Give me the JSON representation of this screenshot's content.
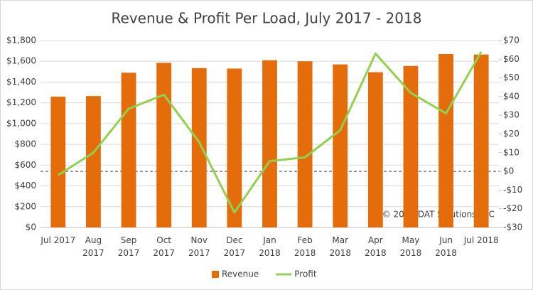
{
  "chart_data": {
    "type": "bar-line",
    "title": "Revenue & Profit Per Load, July 2017 - 2018",
    "annotation": "© 2018 DAT Solutions LLC",
    "categories": [
      [
        "Jul 2017"
      ],
      [
        "Aug",
        "2017"
      ],
      [
        "Sep",
        "2017"
      ],
      [
        "Oct",
        "2017"
      ],
      [
        "Nov",
        "2017"
      ],
      [
        "Dec",
        "2017"
      ],
      [
        "Jan",
        "2018"
      ],
      [
        "Feb",
        "2018"
      ],
      [
        "Mar",
        "2018"
      ],
      [
        "Apr",
        "2018"
      ],
      [
        "May",
        "2018"
      ],
      [
        "Jun",
        "2018"
      ],
      [
        "Jul 2018"
      ]
    ],
    "series": [
      {
        "name": "Revenue",
        "type": "bar",
        "color": "#e46c0a",
        "values": [
          1260,
          1265,
          1490,
          1585,
          1535,
          1530,
          1610,
          1600,
          1570,
          1495,
          1555,
          1670,
          1665
        ]
      },
      {
        "name": "Profit",
        "type": "line",
        "axis": "y2",
        "color": "#92d050",
        "values": [
          -2,
          10,
          33.5,
          41,
          15.6,
          -22,
          5.5,
          7.5,
          22,
          63,
          42,
          31,
          64
        ]
      }
    ],
    "ylim": [
      0,
      1800
    ],
    "yticks": [
      {
        "value": 0,
        "label": "$0"
      },
      {
        "value": 200,
        "label": "$200"
      },
      {
        "value": 400,
        "label": "$400"
      },
      {
        "value": 600,
        "label": "$600"
      },
      {
        "value": 800,
        "label": "$800"
      },
      {
        "value": 1000,
        "label": "$1,000"
      },
      {
        "value": 1200,
        "label": "$1,200"
      },
      {
        "value": 1400,
        "label": "$1,400"
      },
      {
        "value": 1600,
        "label": "$1,600"
      },
      {
        "value": 1800,
        "label": "$1,800"
      }
    ],
    "y2lim": [
      -30,
      70
    ],
    "y2ticks": [
      {
        "value": -30,
        "label": "-$30"
      },
      {
        "value": -20,
        "label": "-$20"
      },
      {
        "value": -10,
        "label": "-$10"
      },
      {
        "value": 0,
        "label": "$0"
      },
      {
        "value": 10,
        "label": "$10"
      },
      {
        "value": 20,
        "label": "$20"
      },
      {
        "value": 30,
        "label": "$30"
      },
      {
        "value": 40,
        "label": "$40"
      },
      {
        "value": 50,
        "label": "$50"
      },
      {
        "value": 60,
        "label": "$60"
      },
      {
        "value": 70,
        "label": "$70"
      }
    ],
    "zero_line": true,
    "legend": "bottom"
  }
}
